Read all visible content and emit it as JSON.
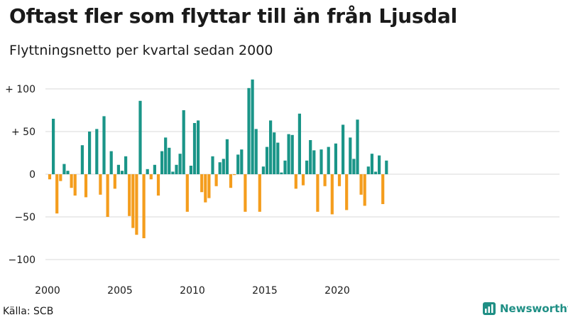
{
  "title": "Oftast fler som flyttar till än från Ljusdal",
  "subtitle": "Flyttningsnetto per kvartal sedan 2000",
  "source": "Källa: SCB",
  "brand": {
    "name": "Newsworthy",
    "icon": "newsworthy-logo-icon",
    "color": "#1f8f85"
  },
  "chart_data": {
    "type": "bar",
    "title": "Oftast fler som flyttar till än från Ljusdal",
    "subtitle": "Flyttningsnetto per kvartal sedan 2000",
    "x_start": "2000 Q1",
    "y_ticks": [
      "+ 100",
      "+ 50",
      "0",
      "−50",
      "−100"
    ],
    "y_tick_values": [
      100,
      50,
      0,
      -50,
      -100
    ],
    "x_ticks": [
      "2000",
      "2005",
      "2010",
      "2015",
      "2020"
    ],
    "ylim": [
      -110,
      110
    ],
    "colors": {
      "positive": "#1a9588",
      "negative": "#f49d1d"
    },
    "values": [
      -6,
      65,
      -46,
      -8,
      12,
      4,
      -16,
      -25,
      0,
      34,
      -27,
      50,
      0,
      53,
      -24,
      68,
      -50,
      27,
      -17,
      11,
      4,
      21,
      -49,
      -63,
      -71,
      86,
      -75,
      6,
      -6,
      11,
      -25,
      27,
      43,
      31,
      3,
      11,
      24,
      75,
      -44,
      10,
      60,
      63,
      -21,
      -33,
      -28,
      21,
      -14,
      14,
      18,
      41,
      -16,
      -1,
      23,
      29,
      -44,
      101,
      111,
      53,
      -44,
      9,
      32,
      63,
      49,
      37,
      2,
      16,
      47,
      46,
      -17,
      71,
      -13,
      16,
      40,
      28,
      -44,
      29,
      -14,
      32,
      -47,
      36,
      -14,
      58,
      -42,
      43,
      18,
      64,
      -24,
      -37,
      9,
      24,
      3,
      22,
      -35,
      16
    ]
  }
}
